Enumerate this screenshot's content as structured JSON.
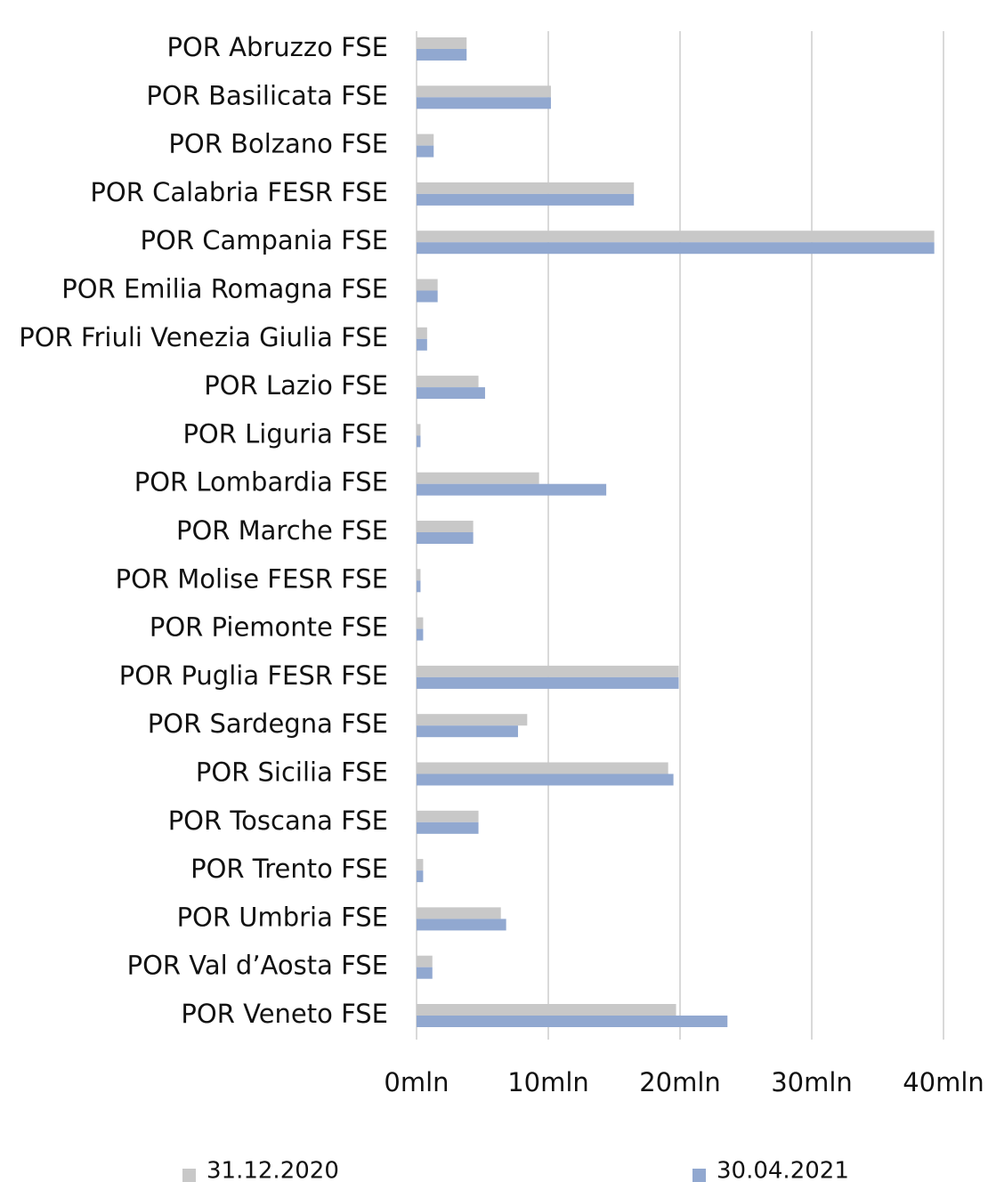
{
  "chart_data": {
    "type": "bar",
    "orientation": "horizontal",
    "categories": [
      "POR Abruzzo FSE",
      "POR Basilicata FSE",
      "POR Bolzano FSE",
      "POR Calabria FESR FSE",
      "POR Campania FSE",
      "POR Emilia Romagna FSE",
      "POR Friuli Venezia Giulia FSE",
      "POR Lazio FSE",
      "POR Liguria FSE",
      "POR Lombardia FSE",
      "POR Marche FSE",
      "POR Molise FESR FSE",
      "POR Piemonte FSE",
      "POR Puglia FESR FSE",
      "POR Sardegna FSE",
      "POR Sicilia FSE",
      "POR Toscana FSE",
      "POR Trento FSE",
      "POR Umbria FSE",
      "POR Val d’Aosta FSE",
      "POR Veneto FSE"
    ],
    "series": [
      {
        "name": "31.12.2020",
        "color": "#c8c8c8",
        "values": [
          3.8,
          10.2,
          1.3,
          16.5,
          39.3,
          1.6,
          0.8,
          4.7,
          0.3,
          9.3,
          4.3,
          0.3,
          0.5,
          19.9,
          8.4,
          19.1,
          4.7,
          0.5,
          6.4,
          1.2,
          19.7
        ]
      },
      {
        "name": "30.04.2021",
        "color": "#91a8d0",
        "values": [
          3.8,
          10.2,
          1.3,
          16.5,
          39.3,
          1.6,
          0.8,
          5.2,
          0.3,
          14.4,
          4.3,
          0.3,
          0.5,
          19.9,
          7.7,
          19.5,
          4.7,
          0.5,
          6.8,
          1.2,
          23.6
        ]
      }
    ],
    "xlim": [
      0,
      40
    ],
    "xticks": [
      {
        "value": 0,
        "label": "0mln"
      },
      {
        "value": 10,
        "label": "10mln"
      },
      {
        "value": 20,
        "label": "20mln"
      },
      {
        "value": 30,
        "label": "30mln"
      },
      {
        "value": 40,
        "label": "40mln"
      }
    ],
    "grid": true,
    "legend": "bottom"
  }
}
